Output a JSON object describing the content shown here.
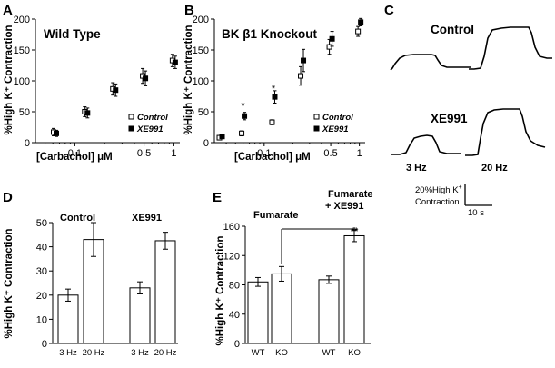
{
  "panels": {
    "A": {
      "letter": "A"
    },
    "B": {
      "letter": "B"
    },
    "C": {
      "letter": "C",
      "labels": {
        "control": "Control",
        "xe991": "XE991",
        "hz3": "3 Hz",
        "hz20": "20 Hz"
      },
      "scalebar": {
        "text": "20%High K",
        "sup": "+",
        "text2": "Contraction",
        "time": "10 s"
      }
    },
    "D": {
      "letter": "D"
    },
    "E": {
      "letter": "E"
    }
  },
  "chart_data": [
    {
      "id": "A",
      "type": "scatter",
      "title": "Wild Type",
      "xlabel": "[Carbachol] μM",
      "ylabel": "%High  K⁺ Contraction",
      "xscale": "log",
      "xlim": [
        0.04,
        1.15
      ],
      "ylim": [
        0,
        200
      ],
      "xticks": [
        0.1,
        0.5,
        1
      ],
      "xtick_labels": [
        "0.1",
        "0.5",
        "1"
      ],
      "yticks": [
        0,
        50,
        100,
        150,
        200
      ],
      "legend": "bottom-right",
      "series": [
        {
          "name": "Control",
          "marker": "open-square",
          "points": [
            {
              "x": 0.063,
              "y": 17,
              "err": 6
            },
            {
              "x": 0.13,
              "y": 50,
              "err": 8
            },
            {
              "x": 0.25,
              "y": 87,
              "err": 10
            },
            {
              "x": 0.5,
              "y": 108,
              "err": 12
            },
            {
              "x": 1,
              "y": 133,
              "err": 10
            }
          ]
        },
        {
          "name": "XE991",
          "marker": "filled-square",
          "points": [
            {
              "x": 0.063,
              "y": 15,
              "err": 5
            },
            {
              "x": 0.13,
              "y": 48,
              "err": 8
            },
            {
              "x": 0.25,
              "y": 85,
              "err": 10
            },
            {
              "x": 0.5,
              "y": 104,
              "err": 12
            },
            {
              "x": 1,
              "y": 130,
              "err": 10
            }
          ]
        }
      ]
    },
    {
      "id": "B",
      "type": "scatter",
      "title": "BK β1 Knockout",
      "xlabel": "[Carbachol] μM",
      "ylabel": "%High  K⁺ Contraction",
      "xscale": "log",
      "xlim": [
        0.03,
        1.15
      ],
      "ylim": [
        0,
        200
      ],
      "xticks": [
        0.1,
        0.5,
        1
      ],
      "xtick_labels": [
        "0.1",
        "0.5",
        "1"
      ],
      "yticks": [
        0,
        50,
        100,
        150,
        200
      ],
      "legend": "bottom-right",
      "annotations": [
        {
          "x": 0.06,
          "y": 60,
          "text": "*"
        },
        {
          "x": 0.125,
          "y": 88,
          "text": "*"
        }
      ],
      "series": [
        {
          "name": "Control",
          "marker": "open-square",
          "points": [
            {
              "x": 0.035,
              "y": 8,
              "err": 3
            },
            {
              "x": 0.06,
              "y": 15,
              "err": 4
            },
            {
              "x": 0.125,
              "y": 33,
              "err": 4
            },
            {
              "x": 0.25,
              "y": 108,
              "err": 15
            },
            {
              "x": 0.5,
              "y": 155,
              "err": 12
            },
            {
              "x": 1,
              "y": 180,
              "err": 8
            }
          ]
        },
        {
          "name": "XE991",
          "marker": "filled-square",
          "points": [
            {
              "x": 0.035,
              "y": 10,
              "err": 3
            },
            {
              "x": 0.06,
              "y": 43,
              "err": 6
            },
            {
              "x": 0.125,
              "y": 74,
              "err": 10
            },
            {
              "x": 0.25,
              "y": 133,
              "err": 18
            },
            {
              "x": 0.5,
              "y": 168,
              "err": 12
            },
            {
              "x": 1,
              "y": 195,
              "err": 6
            }
          ]
        }
      ]
    },
    {
      "id": "D",
      "type": "bar",
      "ylabel": "%High  K⁺ Contraction",
      "ylim": [
        0,
        50
      ],
      "yticks": [
        0,
        10,
        20,
        30,
        40,
        50
      ],
      "groups": [
        {
          "label": "Control",
          "bars": [
            {
              "category": "3 Hz",
              "value": 20,
              "err": 2.5
            },
            {
              "category": "20 Hz",
              "value": 43,
              "err": 7
            }
          ]
        },
        {
          "label": "XE991",
          "bars": [
            {
              "category": "3 Hz",
              "value": 23,
              "err": 2.5
            },
            {
              "category": "20 Hz",
              "value": 42.5,
              "err": 3.5
            }
          ]
        }
      ]
    },
    {
      "id": "E",
      "type": "bar",
      "ylabel": "%High  K⁺ Contraction",
      "ylim": [
        0,
        160
      ],
      "yticks": [
        0,
        40,
        80,
        120,
        160
      ],
      "groups": [
        {
          "label": "Fumarate",
          "bars": [
            {
              "category": "WT",
              "value": 84,
              "err": 6
            },
            {
              "category": "KO",
              "value": 95,
              "err": 10
            }
          ]
        },
        {
          "label": "Fumarate + XE991",
          "bars": [
            {
              "category": "WT",
              "value": 87,
              "err": 5
            },
            {
              "category": "KO",
              "value": 147,
              "err": 8
            }
          ]
        }
      ],
      "annotations": [
        {
          "text": "**"
        }
      ]
    }
  ]
}
